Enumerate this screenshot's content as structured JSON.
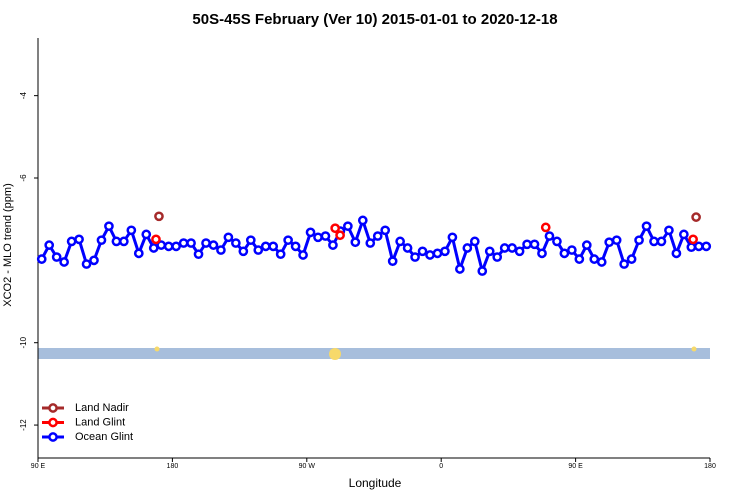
{
  "chart_data": {
    "type": "line",
    "title": "50S-45S February (Ver 10)   2015-01-01 to 2020-12-18",
    "xlabel": "Longitude",
    "ylabel": "XCO2 - MLO trend (ppm)",
    "xlim": [
      90,
      540
    ],
    "ylim": [
      -12.8,
      -2.6
    ],
    "xticks": [
      {
        "value": 90,
        "label": "90 E"
      },
      180,
      {
        "value": 270,
        "label": "90 W"
      },
      {
        "value": 360,
        "label": "0"
      },
      {
        "value": 450,
        "label": "90 E"
      },
      180
    ],
    "yticks": [
      -4,
      -6,
      -10,
      -12
    ],
    "legend": "bottom-left",
    "series": [
      {
        "name": "Land Nadir",
        "color": "#a52a2a",
        "line": false,
        "x": [
          171,
          530.7
        ],
        "values": [
          -6.93,
          -6.95
        ]
      },
      {
        "name": "Land Glint",
        "color": "#ff0000",
        "line": false,
        "x": [
          169,
          289,
          292.3,
          430,
          528.7
        ],
        "values": [
          -7.49,
          -7.22,
          -7.39,
          -7.2,
          -7.49
        ]
      },
      {
        "name": "Ocean Glint",
        "color": "#0000ff",
        "line": true,
        "x": [
          92.5,
          97.5,
          102.5,
          107.5,
          112.5,
          117.5,
          122.5,
          127.5,
          132.5,
          137.5,
          142.5,
          147.5,
          152.5,
          157.5,
          162.5,
          167.5,
          172.5,
          177.5,
          182.5,
          187.5,
          192.5,
          197.5,
          202.5,
          207.5,
          212.5,
          217.5,
          222.5,
          227.5,
          232.5,
          237.5,
          242.5,
          247.5,
          252.5,
          257.5,
          262.5,
          267.5,
          272.5,
          277.5,
          282.5,
          287.5,
          292.5,
          297.5,
          302.5,
          307.5,
          312.5,
          317.5,
          322.5,
          327.5,
          332.5,
          337.5,
          342.5,
          347.5,
          352.5,
          357.5,
          362.5,
          367.5,
          372.5,
          377.5,
          382.5,
          387.5,
          392.5,
          397.5,
          402.5,
          407.5,
          412.5,
          417.5,
          422.5,
          427.5,
          432.5,
          437.5,
          442.5,
          447.5,
          452.5,
          457.5,
          462.5,
          467.5,
          472.5,
          477.5,
          482.5,
          487.5,
          492.5,
          497.5,
          502.5,
          507.5,
          512.5,
          517.5,
          522.5,
          527.5,
          532.5,
          537.5
        ],
        "values": [
          -7.97,
          -7.63,
          -7.92,
          -8.04,
          -7.54,
          -7.49,
          -8.09,
          -8.0,
          -7.51,
          -7.17,
          -7.54,
          -7.54,
          -7.27,
          -7.83,
          -7.37,
          -7.7,
          -7.63,
          -7.66,
          -7.66,
          -7.58,
          -7.58,
          -7.85,
          -7.58,
          -7.63,
          -7.75,
          -7.44,
          -7.58,
          -7.78,
          -7.51,
          -7.75,
          -7.66,
          -7.66,
          -7.85,
          -7.51,
          -7.66,
          -7.87,
          -7.32,
          -7.44,
          -7.41,
          -7.63,
          -7.29,
          -7.17,
          -7.56,
          -7.03,
          -7.58,
          -7.41,
          -7.27,
          -8.02,
          -7.54,
          -7.7,
          -7.92,
          -7.78,
          -7.87,
          -7.83,
          -7.78,
          -7.44,
          -8.21,
          -7.7,
          -7.54,
          -8.26,
          -7.78,
          -7.92,
          -7.7,
          -7.7,
          -7.78,
          -7.61,
          -7.61,
          -7.83,
          -7.41,
          -7.54,
          -7.83,
          -7.75,
          -7.97,
          -7.63,
          -7.97,
          -8.04,
          -7.56,
          -7.51,
          -8.09,
          -7.97,
          -7.51,
          -7.17,
          -7.54,
          -7.54,
          -7.27,
          -7.83,
          -7.37,
          -7.68,
          -7.66,
          -7.66
        ]
      }
    ]
  }
}
